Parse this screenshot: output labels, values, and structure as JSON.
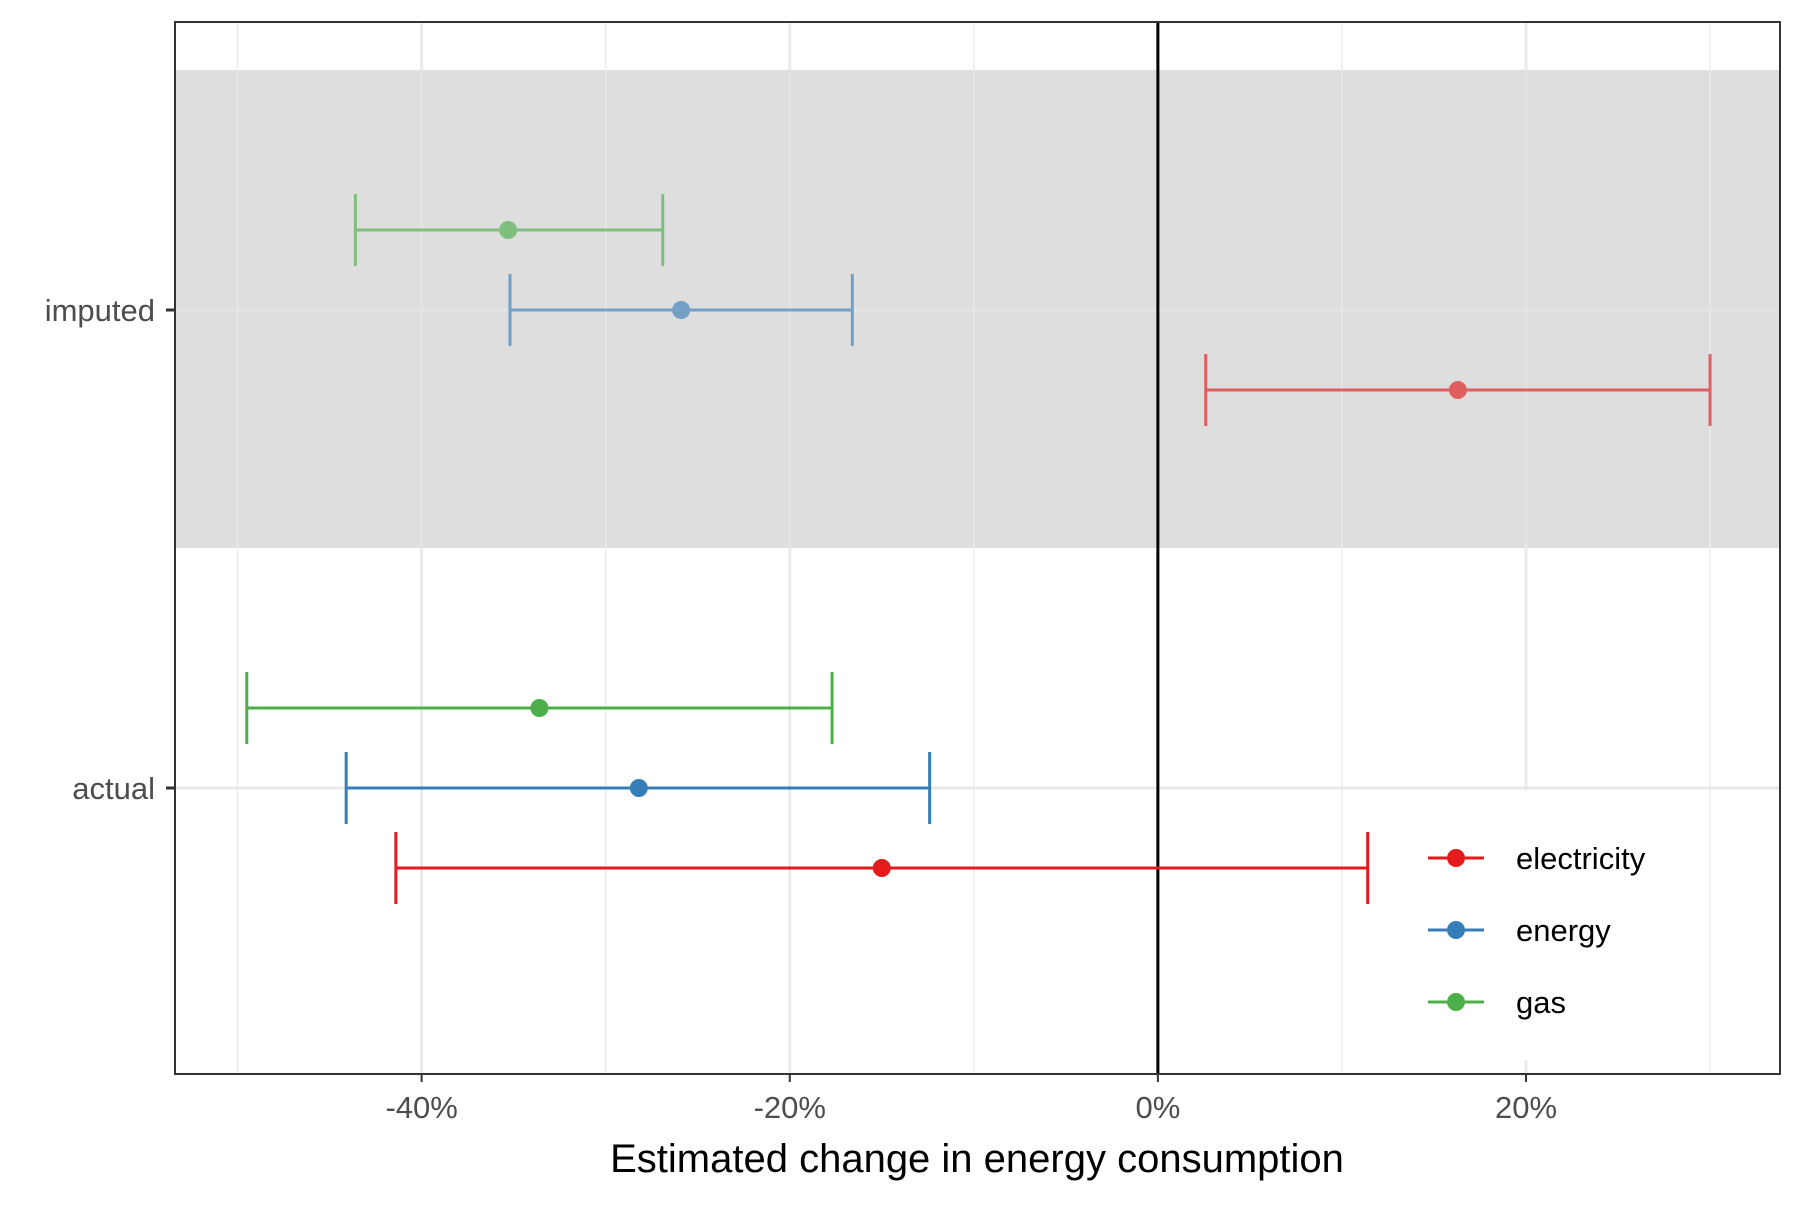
{
  "chart_data": {
    "type": "errorbar",
    "title": "",
    "xlabel": "Estimated change in energy consumption",
    "ylabel": "",
    "xlim": [
      -0.534,
      0.338
    ],
    "x_ticks": [
      -0.4,
      -0.2,
      0.0,
      0.2
    ],
    "x_tick_labels": [
      "-40%",
      "-20%",
      "0%",
      "20%"
    ],
    "categories": [
      "imputed",
      "actual"
    ],
    "highlighted_category": "imputed",
    "reference_line_x": 0,
    "grid": true,
    "legend_position": "bottom-right",
    "series": [
      {
        "name": "electricity",
        "color": "#E41A1C",
        "points": [
          {
            "category": "imputed",
            "estimate": 0.163,
            "lower": 0.026,
            "upper": 0.3
          },
          {
            "category": "actual",
            "estimate": -0.15,
            "lower": -0.414,
            "upper": 0.114
          }
        ]
      },
      {
        "name": "energy",
        "color": "#377EB8",
        "points": [
          {
            "category": "imputed",
            "estimate": -0.259,
            "lower": -0.352,
            "upper": -0.166
          },
          {
            "category": "actual",
            "estimate": -0.282,
            "lower": -0.441,
            "upper": -0.124
          }
        ]
      },
      {
        "name": "gas",
        "color": "#4DAF4A",
        "points": [
          {
            "category": "imputed",
            "estimate": -0.353,
            "lower": -0.436,
            "upper": -0.269
          },
          {
            "category": "actual",
            "estimate": -0.336,
            "lower": -0.495,
            "upper": -0.177
          }
        ]
      }
    ]
  }
}
